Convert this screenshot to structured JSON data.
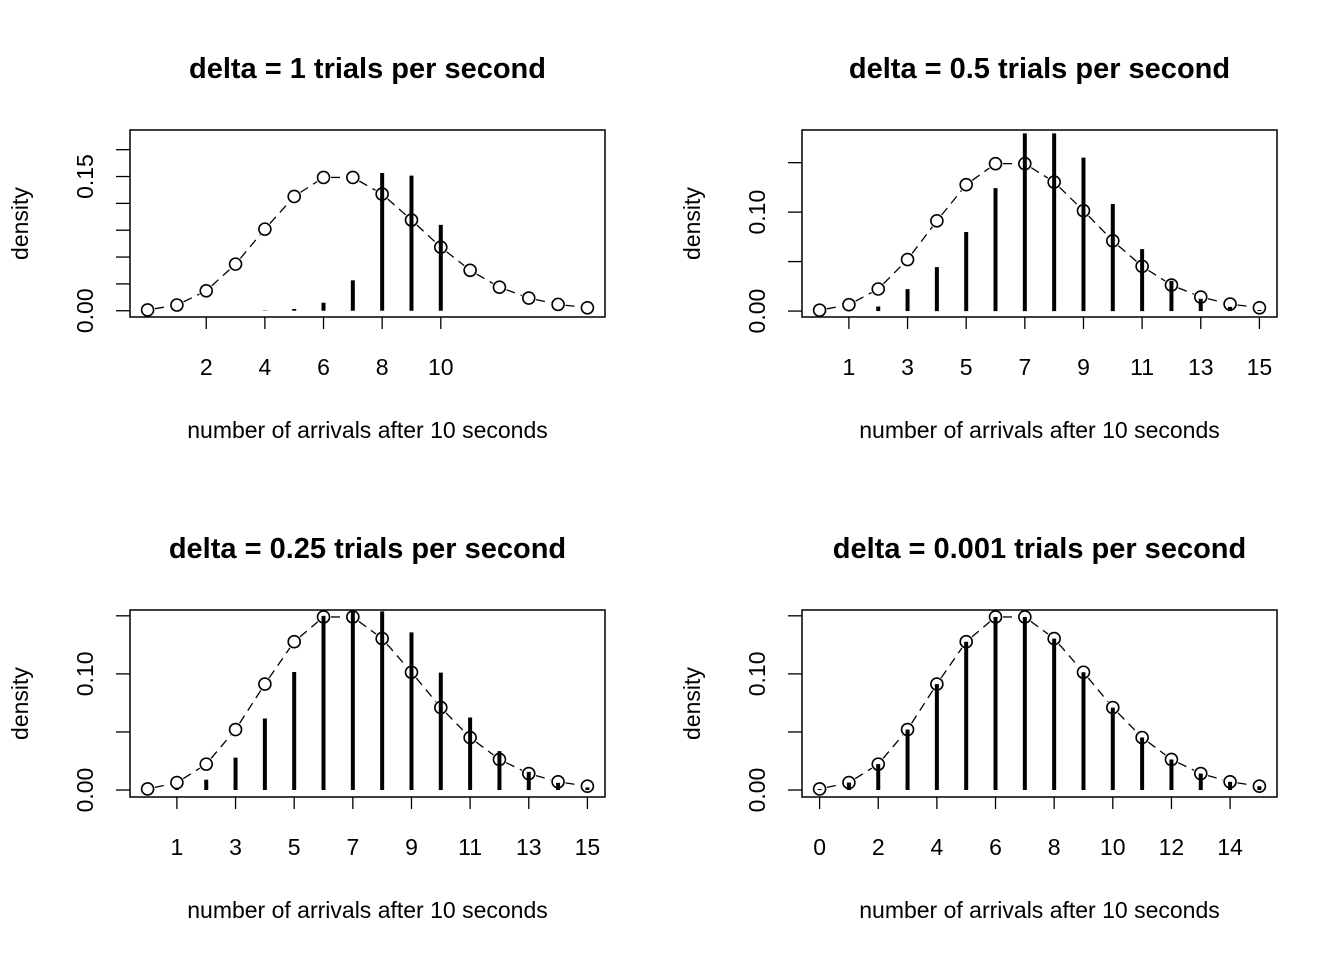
{
  "chart_data": [
    {
      "type": "line",
      "title": "delta =  1 trials per second",
      "xlabel": "number of arrivals after 10 seconds",
      "ylabel": "density",
      "xlim": [
        -0.6,
        15.6
      ],
      "ylim": [
        -0.007,
        0.202
      ],
      "x_ticks": [
        2,
        4,
        6,
        8,
        10
      ],
      "x_tick_labels": [
        "2",
        "4",
        "6",
        "8",
        "10"
      ],
      "y_ticks": [
        0,
        0.03,
        0.06,
        0.09,
        0.12,
        0.15,
        0.18
      ],
      "y_tick_labels": [
        "0.00",
        "",
        "",
        "",
        "",
        "0.15",
        ""
      ],
      "grid": false,
      "legend": "none",
      "series": [
        {
          "kind": "binomial-spikes",
          "x": [
            0,
            1,
            2,
            3,
            4,
            5,
            6,
            7,
            8,
            9,
            10
          ],
          "values": [
            0.0,
            0.0,
            0.0,
            0.0,
            0.0004,
            0.002,
            0.009,
            0.034,
            0.154,
            0.151,
            0.096
          ]
        },
        {
          "kind": "poisson-points",
          "x": [
            0,
            1,
            2,
            3,
            4,
            5,
            6,
            7,
            8,
            9,
            10,
            11,
            12,
            13,
            14,
            15
          ],
          "values": [
            0.0009,
            0.0064,
            0.0223,
            0.0521,
            0.0912,
            0.1277,
            0.149,
            0.149,
            0.1304,
            0.1014,
            0.071,
            0.0452,
            0.0263,
            0.0142,
            0.0071,
            0.0033
          ]
        }
      ]
    },
    {
      "type": "line",
      "title": "delta =  0.5 trials per second",
      "xlabel": "number of arrivals after 10 seconds",
      "ylabel": "density",
      "xlim": [
        -0.6,
        15.6
      ],
      "ylim": [
        -0.006,
        0.183
      ],
      "x_ticks": [
        1,
        3,
        5,
        7,
        9,
        11,
        13,
        15
      ],
      "x_tick_labels": [
        "1",
        "3",
        "5",
        "7",
        "9",
        "11",
        "13",
        "15"
      ],
      "y_ticks": [
        0,
        0.05,
        0.1,
        0.15
      ],
      "y_tick_labels": [
        "0.00",
        "",
        "0.10",
        ""
      ],
      "grid": false,
      "legend": "none",
      "series": [
        {
          "kind": "binomial-spikes",
          "x": [
            0,
            1,
            2,
            3,
            4,
            5,
            6,
            7,
            8,
            9,
            10,
            11,
            12,
            13,
            14,
            15
          ],
          "values": [
            0.0,
            0.0,
            0.0046,
            0.0222,
            0.0444,
            0.0799,
            0.1243,
            0.1796,
            0.1796,
            0.1551,
            0.1082,
            0.0626,
            0.0305,
            0.0124,
            0.0042,
            0.0011
          ]
        },
        {
          "kind": "poisson-points",
          "x": [
            0,
            1,
            2,
            3,
            4,
            5,
            6,
            7,
            8,
            9,
            10,
            11,
            12,
            13,
            14,
            15
          ],
          "values": [
            0.0009,
            0.0064,
            0.0223,
            0.0521,
            0.0912,
            0.1277,
            0.149,
            0.149,
            0.1304,
            0.1014,
            0.071,
            0.0452,
            0.0263,
            0.0142,
            0.0071,
            0.0033
          ]
        }
      ]
    },
    {
      "type": "line",
      "title": "delta =  0.25 trials per second",
      "xlabel": "number of arrivals after 10 seconds",
      "ylabel": "density",
      "xlim": [
        -0.6,
        15.6
      ],
      "ylim": [
        -0.006,
        0.155
      ],
      "x_ticks": [
        1,
        3,
        5,
        7,
        9,
        11,
        13,
        15
      ],
      "x_tick_labels": [
        "1",
        "3",
        "5",
        "7",
        "9",
        "11",
        "13",
        "15"
      ],
      "y_ticks": [
        0,
        0.05,
        0.1,
        0.15
      ],
      "y_tick_labels": [
        "0.00",
        "",
        "0.10",
        ""
      ],
      "grid": false,
      "legend": "none",
      "series": [
        {
          "kind": "binomial-spikes",
          "x": [
            0,
            1,
            2,
            3,
            4,
            5,
            6,
            7,
            8,
            9,
            10,
            11,
            12,
            13,
            14,
            15
          ],
          "values": [
            0.0,
            0.0018,
            0.0089,
            0.0279,
            0.0616,
            0.1016,
            0.1499,
            0.1538,
            0.1538,
            0.1357,
            0.1011,
            0.0624,
            0.0335,
            0.0156,
            0.0062,
            0.0022
          ]
        },
        {
          "kind": "poisson-points",
          "x": [
            0,
            1,
            2,
            3,
            4,
            5,
            6,
            7,
            8,
            9,
            10,
            11,
            12,
            13,
            14,
            15
          ],
          "values": [
            0.0009,
            0.0064,
            0.0223,
            0.0521,
            0.0912,
            0.1277,
            0.149,
            0.149,
            0.1304,
            0.1014,
            0.071,
            0.0452,
            0.0263,
            0.0142,
            0.0071,
            0.0033
          ]
        }
      ]
    },
    {
      "type": "line",
      "title": "delta =  0.001 trials per second",
      "xlabel": "number of arrivals after 10 seconds",
      "ylabel": "density",
      "xlim": [
        -0.6,
        15.6
      ],
      "ylim": [
        -0.006,
        0.155
      ],
      "x_ticks": [
        0,
        2,
        4,
        6,
        8,
        10,
        12,
        14
      ],
      "x_tick_labels": [
        "0",
        "2",
        "4",
        "6",
        "8",
        "10",
        "12",
        "14"
      ],
      "y_ticks": [
        0,
        0.05,
        0.1,
        0.15
      ],
      "y_tick_labels": [
        "0.00",
        "",
        "0.10",
        ""
      ],
      "grid": false,
      "legend": "none",
      "series": [
        {
          "kind": "binomial-spikes",
          "x": [
            0,
            1,
            2,
            3,
            4,
            5,
            6,
            7,
            8,
            9,
            10,
            11,
            12,
            13,
            14,
            15
          ],
          "values": [
            0.0009,
            0.0064,
            0.0223,
            0.0521,
            0.0912,
            0.1277,
            0.149,
            0.149,
            0.1304,
            0.1014,
            0.071,
            0.0452,
            0.0263,
            0.0142,
            0.0071,
            0.0033
          ]
        },
        {
          "kind": "poisson-points",
          "x": [
            0,
            1,
            2,
            3,
            4,
            5,
            6,
            7,
            8,
            9,
            10,
            11,
            12,
            13,
            14,
            15
          ],
          "values": [
            0.0009,
            0.0064,
            0.0223,
            0.0521,
            0.0912,
            0.1277,
            0.149,
            0.149,
            0.1304,
            0.1014,
            0.071,
            0.0452,
            0.0263,
            0.0142,
            0.0071,
            0.0033
          ]
        }
      ]
    }
  ]
}
